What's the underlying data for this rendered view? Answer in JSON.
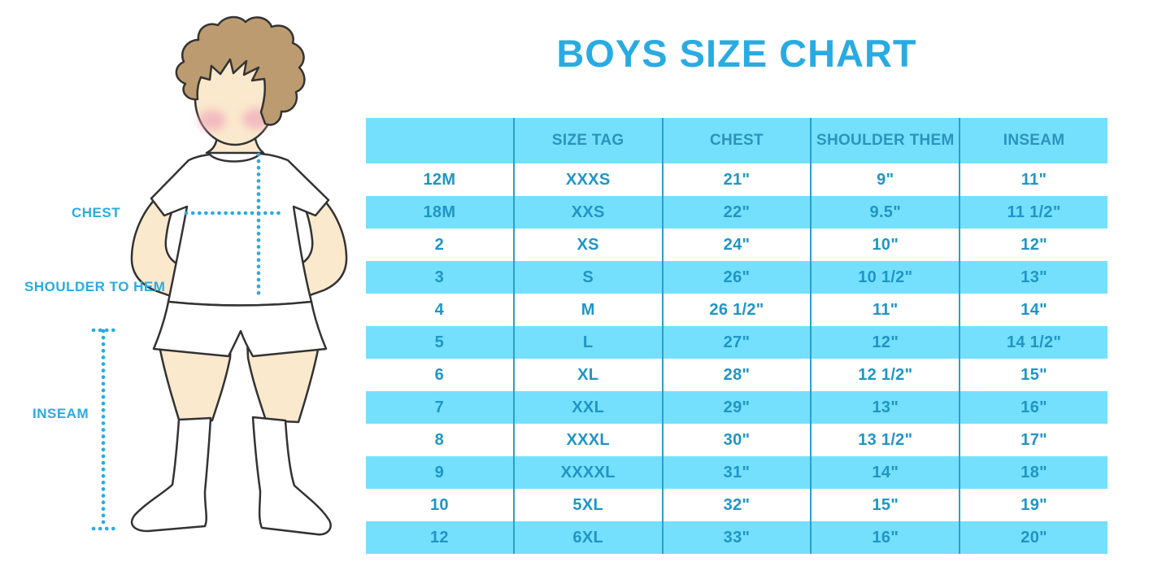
{
  "page_title": "BOYS SIZE CHART",
  "colors": {
    "accent_blue": "#29ABE2",
    "band_cyan": "#75E0FD",
    "table_text": "#1F95C6",
    "divider": "#2AA0CF",
    "hair": "#BD9B70",
    "skin": "#FAE9CD",
    "cheek": "#F0A3B8",
    "outline": "#333333"
  },
  "figure": {
    "name": "boy-measurement-illustration",
    "labels": {
      "chest": "CHEST",
      "shoulder_to_hem": "SHOULDER TO HEM",
      "inseam": "INSEAM"
    }
  },
  "chart_data": {
    "type": "table",
    "title": "BOYS SIZE CHART",
    "columns": [
      "",
      "SIZE TAG",
      "CHEST",
      "SHOULDER THEM",
      "INSEAM"
    ],
    "rows": [
      [
        "12M",
        "XXXS",
        "21\"",
        "9\"",
        "11\""
      ],
      [
        "18M",
        "XXS",
        "22\"",
        "9.5\"",
        "11 1/2\""
      ],
      [
        "2",
        "XS",
        "24\"",
        "10\"",
        "12\""
      ],
      [
        "3",
        "S",
        "26\"",
        "10 1/2\"",
        "13\""
      ],
      [
        "4",
        "M",
        "26 1/2\"",
        "11\"",
        "14\""
      ],
      [
        "5",
        "L",
        "27\"",
        "12\"",
        "14 1/2\""
      ],
      [
        "6",
        "XL",
        "28\"",
        "12 1/2\"",
        "15\""
      ],
      [
        "7",
        "XXL",
        "29\"",
        "13\"",
        "16\""
      ],
      [
        "8",
        "XXXL",
        "30\"",
        "13 1/2\"",
        "17\""
      ],
      [
        "9",
        "XXXXL",
        "31\"",
        "14\"",
        "18\""
      ],
      [
        "10",
        "5XL",
        "32\"",
        "15\"",
        "19\""
      ],
      [
        "12",
        "6XL",
        "33\"",
        "16\"",
        "20\""
      ]
    ],
    "layout": {
      "header_background": "#75E0FD",
      "row_alternation": [
        "#ffffff",
        "#75E0FD"
      ],
      "column_dividers": true,
      "horizontal_gridlines": false
    }
  }
}
